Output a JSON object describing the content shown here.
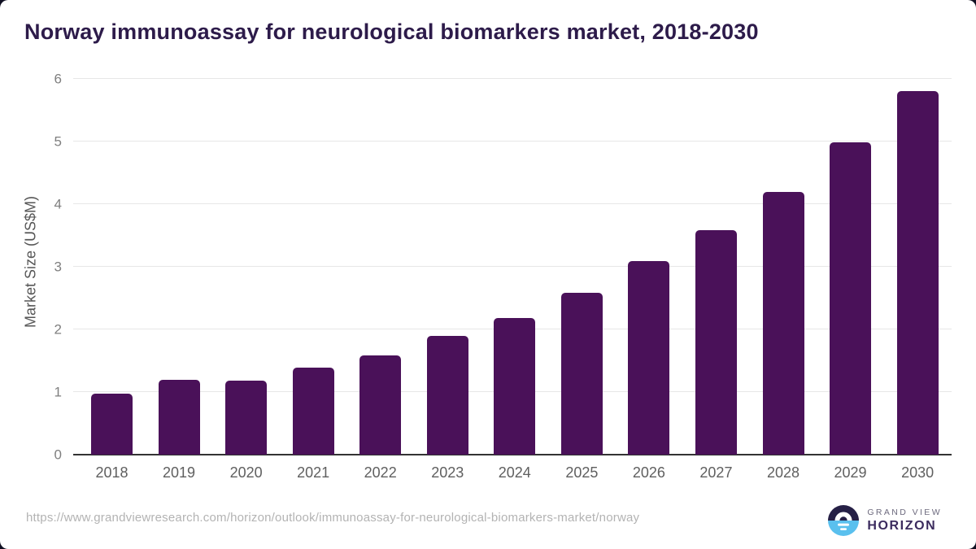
{
  "page": {
    "background_color": "#101022",
    "card_color": "#ffffff"
  },
  "header": {
    "title": "Norway immunoassay for neurological biomarkers market, 2018-2030",
    "title_color": "#2d1b4a"
  },
  "chart_data": {
    "type": "bar",
    "title": "Norway immunoassay for neurological biomarkers market, 2018-2030",
    "categories": [
      "2018",
      "2019",
      "2020",
      "2021",
      "2022",
      "2023",
      "2024",
      "2025",
      "2026",
      "2027",
      "2028",
      "2029",
      "2030"
    ],
    "values": [
      0.98,
      1.19,
      1.18,
      1.39,
      1.59,
      1.89,
      2.18,
      2.59,
      3.09,
      3.59,
      4.19,
      4.99,
      5.8
    ],
    "xlabel": "",
    "ylabel": "Market Size (US$M)",
    "ylim": [
      0,
      6
    ],
    "yticks": [
      0,
      1,
      2,
      3,
      4,
      5,
      6
    ],
    "grid": true,
    "legend": false,
    "bar_color": "#4a1159",
    "gridline_color": "#e7e7e7",
    "axis_line_color": "#333333"
  },
  "footer": {
    "source_url": "https://www.grandviewresearch.com/horizon/outlook/immunoassay-for-neurological-biomarkers-market/norway",
    "logo": {
      "line1": "GRAND VIEW",
      "line2": "HORIZON",
      "circle_top_color": "#262046",
      "circle_bottom_color": "#5ac0ee"
    }
  }
}
